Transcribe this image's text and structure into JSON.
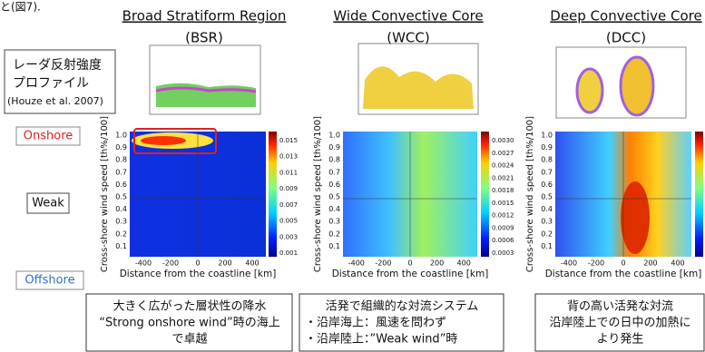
{
  "header": {
    "fragment": "と(図7).",
    "regimes": [
      {
        "title": "Broad Stratiform Region",
        "abbr": "(BSR)"
      },
      {
        "title": "Wide Convective Core",
        "abbr": "(WCC)"
      },
      {
        "title": "Deep Convective Core",
        "abbr": "(DCC)"
      }
    ]
  },
  "legend_box": {
    "lines": [
      "レーダ反射強度",
      "プロファイル",
      "(Houze et al. 2007)"
    ]
  },
  "row_labels": {
    "onshore": "Onshore",
    "weak": "Weak",
    "offshore": "Offshore"
  },
  "panels": [
    {
      "y_label": "Cross-shore wind speed [th%/100]",
      "x_label": "Distance from the coastline [km]",
      "yticks": [
        "1.0",
        "0.9",
        "0.8",
        "0.7",
        "0.6",
        "0.5",
        "0.4",
        "0.3",
        "0.2",
        "0.1"
      ],
      "xticks": [
        "-400",
        "-200",
        "0",
        "200",
        "400"
      ],
      "colorbar_ticks": [
        "0.015",
        "0.013",
        "0.011",
        "0.009",
        "0.007",
        "0.005",
        "0.003",
        "0.001"
      ]
    },
    {
      "y_label": "Cross-shore wind speed [th%/100]",
      "x_label": "Distance from the coastline [km]",
      "yticks": [
        "1.0",
        "0.9",
        "0.8",
        "0.7",
        "0.6",
        "0.5",
        "0.4",
        "0.3",
        "0.2",
        "0.1"
      ],
      "xticks": [
        "-400",
        "-200",
        "0",
        "200",
        "400"
      ],
      "colorbar_ticks": [
        "0.0030",
        "0.0027",
        "0.0024",
        "0.0021",
        "0.0018",
        "0.0015",
        "0.0012",
        "0.0009",
        "0.0006",
        "0.0003"
      ]
    },
    {
      "y_label": "Cross-shore wind speed [th%/100]",
      "x_label": "Distance from the coastline [km]",
      "yticks": [
        "1.0",
        "0.9",
        "0.8",
        "0.7",
        "0.6",
        "0.5",
        "0.4",
        "0.3",
        "0.2",
        "0.1"
      ],
      "xticks": [
        "-400",
        "-200",
        "0",
        "200",
        "400"
      ],
      "colorbar_ticks": []
    }
  ],
  "captions": [
    {
      "lines": [
        "大きく広がった層状性の降水",
        "“Strong onshore wind”時の海上",
        "で卓越"
      ]
    },
    {
      "lines": [
        "活発で組織的な対流システム",
        "・沿岸海上：風速を問わず",
        "・沿岸陸上：”Weak wind”時"
      ]
    },
    {
      "lines": [
        "背の高い活発な対流",
        "沿岸陸上での日中の加熱に",
        "より発生"
      ]
    }
  ]
}
